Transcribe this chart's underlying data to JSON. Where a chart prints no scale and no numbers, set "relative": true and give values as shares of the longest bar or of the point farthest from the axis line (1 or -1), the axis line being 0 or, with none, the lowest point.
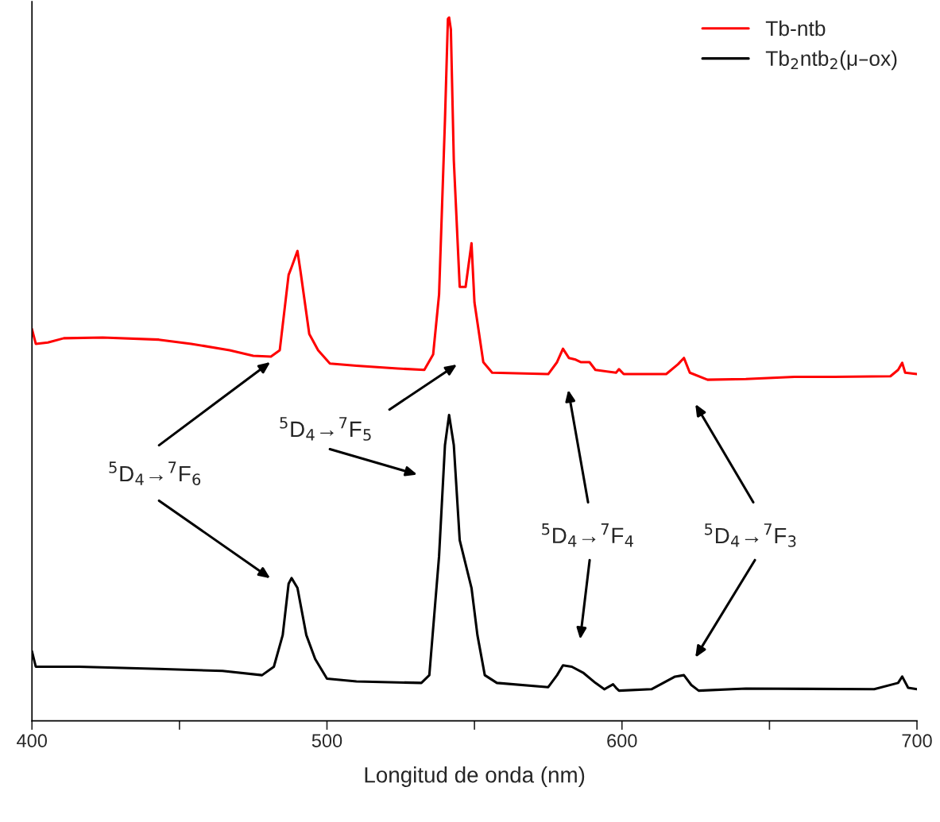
{
  "chart_data": {
    "type": "line",
    "relative": true,
    "xlabel": "Longitud de onda (nm)",
    "xlim": [
      400,
      700
    ],
    "xticks": [
      400,
      {
        "value": 450,
        "label": null
      },
      500,
      {
        "value": 550,
        "label": null
      },
      600,
      {
        "value": 650,
        "label": null
      },
      700
    ],
    "legend": "top right",
    "grid": false,
    "line_style": "solid",
    "marker": "none",
    "tick_labels": "x",
    "annotations": [
      "$^{5}$D$_{4}$→$^{7}$F$_{6}$",
      "$^{5}$D$_{4}$→$^{7}$F$_{5}$",
      "$^{5}$D$_{4}$→$^{7}$F$_{4}$",
      "$^{5}$D$_{4}$→$^{7}$F$_{3}$"
    ],
    "series": [
      {
        "name": "Tb-ntb",
        "color": "#ff0000",
        "x": [
          400,
          401.3,
          405.4,
          410.8,
          424,
          443,
          454,
          467,
          475,
          481,
          484,
          487,
          488,
          490,
          491,
          494,
          497,
          501,
          510,
          524,
          533,
          536,
          538,
          540,
          541,
          541.4,
          542,
          543,
          545,
          547,
          549,
          550,
          553,
          556,
          575,
          578,
          580,
          582,
          584,
          586,
          589,
          591,
          598,
          599,
          600.6,
          615,
          619,
          621,
          623,
          629,
          642,
          658.5,
          672,
          691,
          693.6,
          695,
          696,
          700
        ],
        "values": [
          0.557,
          0.536,
          0.538,
          0.544,
          0.545,
          0.542,
          0.536,
          0.527,
          0.519,
          0.518,
          0.527,
          0.634,
          0.645,
          0.668,
          0.64,
          0.55,
          0.527,
          0.508,
          0.505,
          0.501,
          0.499,
          0.521,
          0.606,
          0.854,
          0.998,
          1,
          0.983,
          0.797,
          0.617,
          0.617,
          0.679,
          0.595,
          0.51,
          0.495,
          0.493,
          0.51,
          0.529,
          0.516,
          0.514,
          0.51,
          0.51,
          0.499,
          0.495,
          0.5,
          0.493,
          0.493,
          0.507,
          0.516,
          0.495,
          0.485,
          0.486,
          0.489,
          0.489,
          0.49,
          0.499,
          0.509,
          0.495,
          0.493
        ]
      },
      {
        "name": "Tb$_{2}$ntb$_{2}$(μ–ox)",
        "color": "#000000",
        "x": [
          400,
          401.3,
          416,
          443,
          464.6,
          478,
          482,
          485,
          487,
          488,
          490,
          493,
          496,
          500,
          510,
          532,
          534.7,
          538,
          540,
          541.4,
          543,
          545,
          549,
          551,
          553.5,
          557.6,
          575,
          578,
          580,
          583,
          587,
          591,
          594,
          597,
          598,
          599,
          610,
          618,
          621,
          623.5,
          626,
          642,
          685.5,
          693.6,
          695,
          697,
          700
        ],
        "values": [
          0.099,
          0.077,
          0.077,
          0.074,
          0.071,
          0.065,
          0.077,
          0.122,
          0.195,
          0.203,
          0.189,
          0.122,
          0.088,
          0.06,
          0.056,
          0.054,
          0.065,
          0.234,
          0.392,
          0.435,
          0.392,
          0.257,
          0.189,
          0.122,
          0.065,
          0.054,
          0.048,
          0.065,
          0.079,
          0.077,
          0.068,
          0.054,
          0.045,
          0.052,
          0.047,
          0.043,
          0.045,
          0.063,
          0.065,
          0.051,
          0.043,
          0.046,
          0.045,
          0.054,
          0.063,
          0.047,
          0.045
        ]
      }
    ]
  }
}
